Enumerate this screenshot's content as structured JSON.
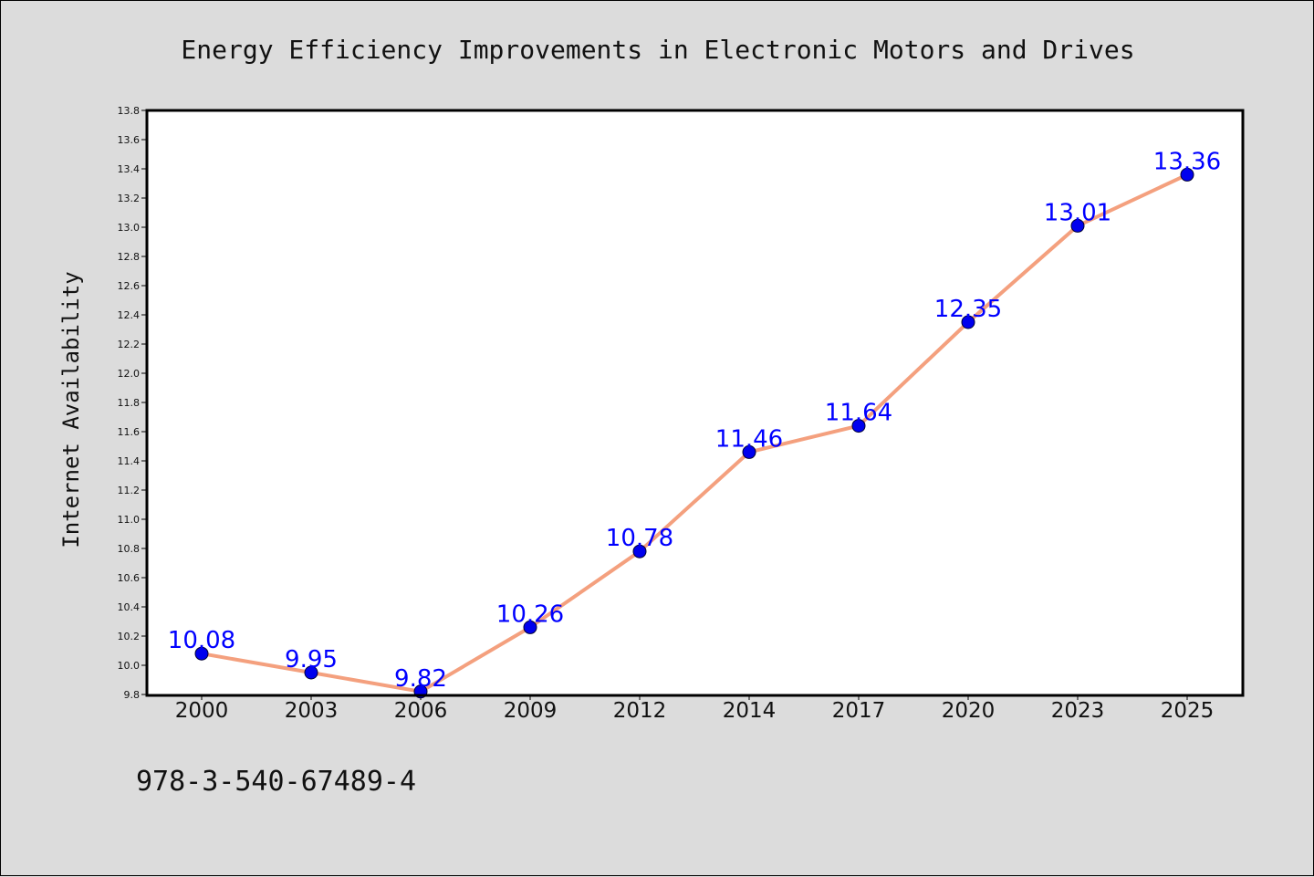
{
  "chart_data": {
    "type": "line",
    "title": "Energy Efficiency Improvements in Electronic Motors and Drives",
    "xlabel": "",
    "ylabel": "Internet Availability",
    "categories": [
      "2000",
      "2003",
      "2006",
      "2009",
      "2012",
      "2014",
      "2017",
      "2020",
      "2023",
      "2025"
    ],
    "series": [
      {
        "values": [
          10.08,
          9.95,
          9.82,
          10.26,
          10.78,
          11.46,
          11.64,
          12.35,
          13.01,
          13.36
        ]
      }
    ],
    "data_labels": [
      "10.08",
      "9.95",
      "9.82",
      "10.26",
      "10.78",
      "11.46",
      "11.64",
      "12.35",
      "13.01",
      "13.36"
    ],
    "ylim": [
      9.8,
      13.8
    ],
    "yticks": [
      "9.8",
      "10.0",
      "10.2",
      "10.4",
      "10.6",
      "10.8",
      "11.0",
      "11.2",
      "11.4",
      "11.6",
      "11.8",
      "12.0",
      "12.2",
      "12.4",
      "12.6",
      "12.8",
      "13.0",
      "13.2",
      "13.4",
      "13.6",
      "13.8"
    ],
    "line_color": "#f4a07e",
    "marker_color": "#0000ee",
    "label_color": "#0000ff",
    "plot_background": "#ffffff",
    "figure_background": "#dcdcdc",
    "grid": false,
    "legend": "none"
  },
  "caption": "978-3-540-67489-4"
}
